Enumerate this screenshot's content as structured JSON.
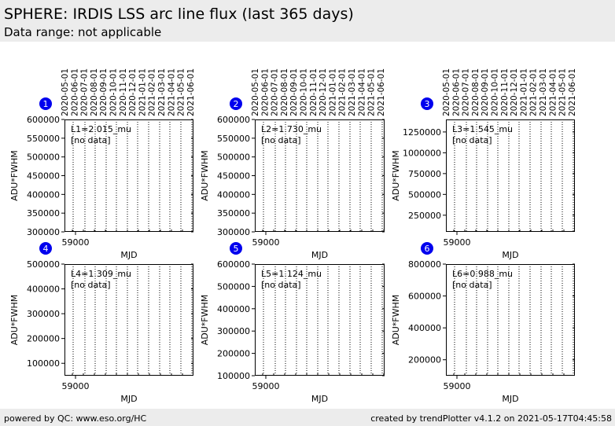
{
  "header": {
    "title": "SPHERE: IRDIS LSS arc line flux (last 365 days)",
    "subtitle": "Data range: not applicable"
  },
  "footer": {
    "left": "powered by QC: www.eso.org/HC",
    "right": "created by trendPlotter v4.1.2 on 2021-05-17T04:45:58"
  },
  "colors": {
    "marker": "#0000ee",
    "frame": "#000000",
    "grid": "#000000",
    "header_bg": "#ececec"
  },
  "chart_data": [
    {
      "type": "scatter",
      "marker": "1",
      "xlabel": "MJD",
      "ylabel": "ADU*FWHM",
      "annotation": "L1=2.015_mu",
      "note": "[no data]",
      "x_tick_labels": [
        "59000"
      ],
      "top_date_labels": [
        "2020-05-01",
        "2020-06-01",
        "2020-07-01",
        "2020-08-01",
        "2020-09-01",
        "2020-10-01",
        "2020-11-01",
        "2020-12-01",
        "2021-01-01",
        "2021-02-01",
        "2021-03-01",
        "2021-04-01",
        "2021-05-01",
        "2021-06-01"
      ],
      "ylim": [
        300000,
        600000
      ],
      "y_ticks": [
        300000,
        350000,
        400000,
        450000,
        500000,
        550000,
        600000
      ],
      "grid": "vertical dotted",
      "series": [
        {
          "x": [],
          "y": []
        }
      ]
    },
    {
      "type": "scatter",
      "marker": "2",
      "xlabel": "MJD",
      "ylabel": "ADU*FWHM",
      "annotation": "L2=1.730_mu",
      "note": "[no data]",
      "x_tick_labels": [
        "59000"
      ],
      "top_date_labels": [
        "2020-05-01",
        "2020-06-01",
        "2020-07-01",
        "2020-08-01",
        "2020-09-01",
        "2020-10-01",
        "2020-11-01",
        "2020-12-01",
        "2021-01-01",
        "2021-02-01",
        "2021-03-01",
        "2021-04-01",
        "2021-05-01",
        "2021-06-01"
      ],
      "ylim": [
        300000,
        600000
      ],
      "y_ticks": [
        300000,
        350000,
        400000,
        450000,
        500000,
        550000,
        600000
      ],
      "grid": "vertical dotted",
      "series": [
        {
          "x": [],
          "y": []
        }
      ]
    },
    {
      "type": "scatter",
      "marker": "3",
      "xlabel": "MJD",
      "ylabel": "ADU*FWHM",
      "annotation": "L3=1.545_mu",
      "note": "[no data]",
      "x_tick_labels": [
        "59000"
      ],
      "top_date_labels": [
        "2020-05-01",
        "2020-06-01",
        "2020-07-01",
        "2020-08-01",
        "2020-09-01",
        "2020-10-01",
        "2020-11-01",
        "2020-12-01",
        "2021-01-01",
        "2021-02-01",
        "2021-03-01",
        "2021-04-01",
        "2021-05-01",
        "2021-06-01"
      ],
      "ylim": [
        50000,
        1400000
      ],
      "y_ticks": [
        250000,
        500000,
        750000,
        1000000,
        1250000
      ],
      "grid": "vertical dotted",
      "series": [
        {
          "x": [],
          "y": []
        }
      ]
    },
    {
      "type": "scatter",
      "marker": "4",
      "xlabel": "MJD",
      "ylabel": "ADU*FWHM",
      "annotation": "L4=1.309_mu",
      "note": "[no data]",
      "x_tick_labels": [
        "59000"
      ],
      "top_date_labels": [],
      "ylim": [
        50000,
        500000
      ],
      "y_ticks": [
        100000,
        200000,
        300000,
        400000,
        500000
      ],
      "grid": "vertical dotted",
      "series": [
        {
          "x": [],
          "y": []
        }
      ]
    },
    {
      "type": "scatter",
      "marker": "5",
      "xlabel": "MJD",
      "ylabel": "ADU*FWHM",
      "annotation": "L5=1.124_mu",
      "note": "[no data]",
      "x_tick_labels": [
        "59000"
      ],
      "top_date_labels": [],
      "ylim": [
        100000,
        600000
      ],
      "y_ticks": [
        100000,
        200000,
        300000,
        400000,
        500000,
        600000
      ],
      "grid": "vertical dotted",
      "series": [
        {
          "x": [],
          "y": []
        }
      ]
    },
    {
      "type": "scatter",
      "marker": "6",
      "xlabel": "MJD",
      "ylabel": "ADU*FWHM",
      "annotation": "L6=0.988_mu",
      "note": "[no data]",
      "x_tick_labels": [
        "59000"
      ],
      "top_date_labels": [],
      "ylim": [
        100000,
        800000
      ],
      "y_ticks": [
        200000,
        400000,
        600000,
        800000
      ],
      "grid": "vertical dotted",
      "series": [
        {
          "x": [],
          "y": []
        }
      ]
    }
  ]
}
